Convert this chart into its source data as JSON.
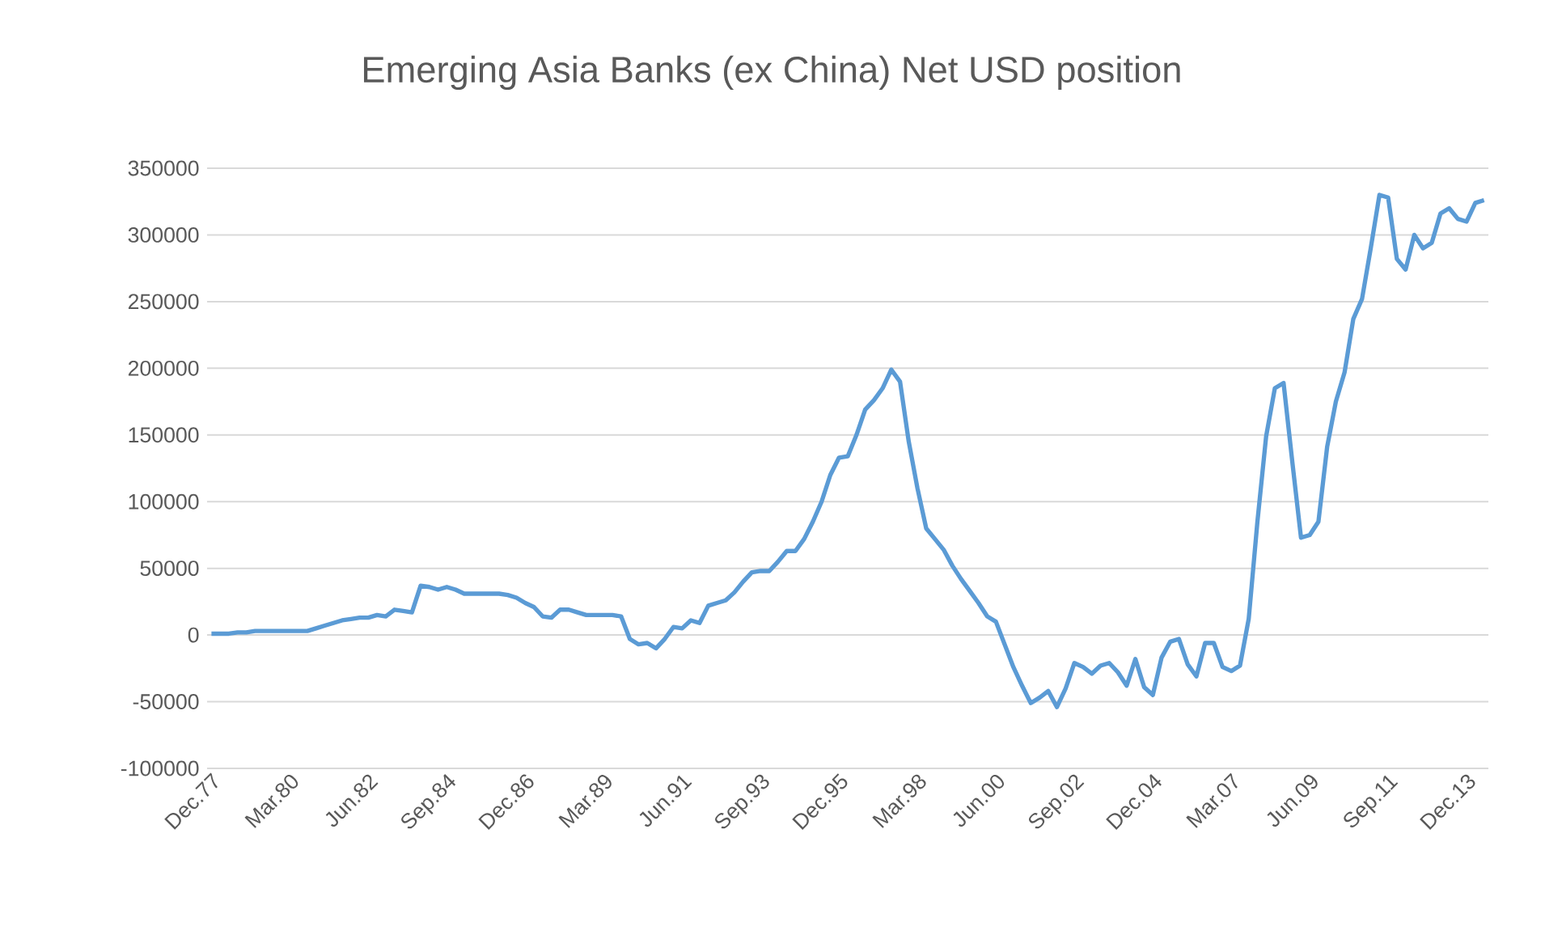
{
  "chart_data": {
    "type": "line",
    "title": "Emerging Asia Banks (ex China) Net USD position",
    "categories": [
      "Dec.77",
      null,
      null,
      null,
      null,
      null,
      null,
      null,
      null,
      "Mar.80",
      null,
      null,
      null,
      null,
      null,
      null,
      null,
      null,
      "Jun.82",
      null,
      null,
      null,
      null,
      null,
      null,
      null,
      null,
      "Sep.84",
      null,
      null,
      null,
      null,
      null,
      null,
      null,
      null,
      "Dec.86",
      null,
      null,
      null,
      null,
      null,
      null,
      null,
      null,
      "Mar.89",
      null,
      null,
      null,
      null,
      null,
      null,
      null,
      null,
      "Jun.91",
      null,
      null,
      null,
      null,
      null,
      null,
      null,
      null,
      "Sep.93",
      null,
      null,
      null,
      null,
      null,
      null,
      null,
      null,
      "Dec.95",
      null,
      null,
      null,
      null,
      null,
      null,
      null,
      null,
      "Mar.98",
      null,
      null,
      null,
      null,
      null,
      null,
      null,
      null,
      "Jun.00",
      null,
      null,
      null,
      null,
      null,
      null,
      null,
      null,
      "Sep.02",
      null,
      null,
      null,
      null,
      null,
      null,
      null,
      null,
      "Dec.04",
      null,
      null,
      null,
      null,
      null,
      null,
      null,
      null,
      "Mar.07",
      null,
      null,
      null,
      null,
      null,
      null,
      null,
      null,
      "Jun.09",
      null,
      null,
      null,
      null,
      null,
      null,
      null,
      null,
      "Sep.11",
      null,
      null,
      null,
      null,
      null,
      null,
      null,
      null,
      "Dec.13",
      null,
      null
    ],
    "series": [
      {
        "color": "#5b9bd5",
        "values": [
          1000,
          1000,
          1000,
          2000,
          2000,
          3000,
          3000,
          3000,
          3000,
          3000,
          3000,
          3000,
          5000,
          7000,
          9000,
          11000,
          12000,
          13000,
          13000,
          15000,
          14000,
          19000,
          18000,
          17000,
          37000,
          36000,
          34000,
          36000,
          34000,
          31000,
          31000,
          31000,
          31000,
          31000,
          30000,
          28000,
          24000,
          21000,
          14000,
          13000,
          19000,
          19000,
          17000,
          15000,
          15000,
          15000,
          15000,
          14000,
          -3000,
          -7000,
          -6000,
          -10000,
          -3000,
          6000,
          5000,
          11000,
          9000,
          22000,
          24000,
          26000,
          32000,
          40000,
          47000,
          48000,
          48000,
          55000,
          63000,
          63000,
          72000,
          85000,
          100000,
          120000,
          133000,
          134000,
          150000,
          169000,
          176000,
          185000,
          199000,
          190000,
          145000,
          110000,
          80000,
          72000,
          64000,
          52000,
          42000,
          33000,
          24000,
          14000,
          10000,
          -7000,
          -24000,
          -38000,
          -51000,
          -47000,
          -42000,
          -54000,
          -40000,
          -21000,
          -24000,
          -29000,
          -23000,
          -21000,
          -28000,
          -38000,
          -18000,
          -39000,
          -45000,
          -17000,
          -5000,
          -3000,
          -22000,
          -31000,
          -6000,
          -6000,
          -24000,
          -27000,
          -23000,
          12000,
          85000,
          149000,
          185000,
          189000,
          130000,
          73000,
          75000,
          85000,
          141000,
          175000,
          197000,
          237000,
          252000,
          290000,
          330000,
          328000,
          282000,
          274000,
          300000,
          290000,
          294000,
          316000,
          320000,
          312000,
          310000,
          324000,
          326000
        ]
      }
    ],
    "ylim": [
      -100000,
      350000
    ],
    "yticks": [
      -100000,
      -50000,
      0,
      50000,
      100000,
      150000,
      200000,
      250000,
      300000,
      350000
    ],
    "grid": "y",
    "line_style": "solid",
    "legend": false
  }
}
